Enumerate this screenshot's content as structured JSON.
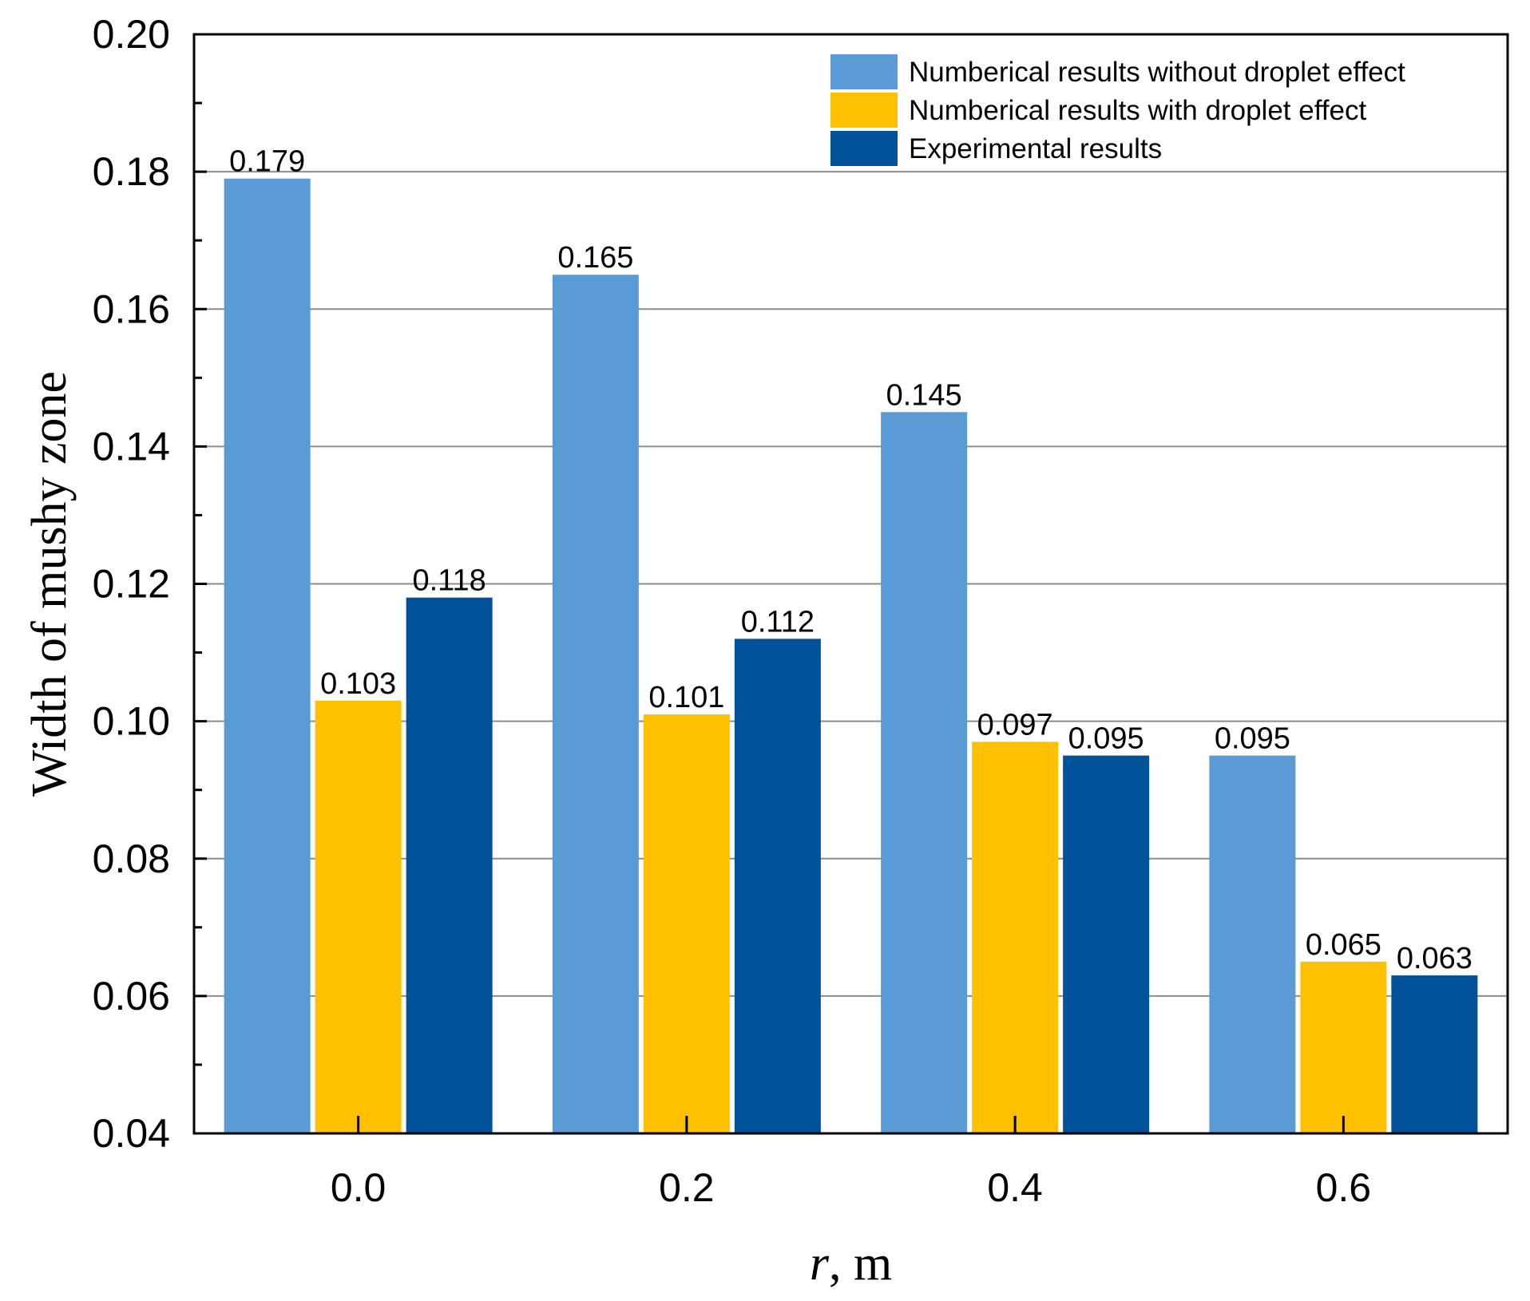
{
  "chart_data": {
    "type": "bar",
    "title": "",
    "xlabel": "r, m",
    "xlabel_var": "r",
    "xlabel_unit": ", m",
    "ylabel": "Width of mushy zone",
    "categories": [
      "0.0",
      "0.2",
      "0.4",
      "0.6"
    ],
    "ylim": [
      0.04,
      0.2
    ],
    "yticks": [
      "0.04",
      "0.06",
      "0.08",
      "0.10",
      "0.12",
      "0.14",
      "0.16",
      "0.18",
      "0.20"
    ],
    "grid": "horizontal",
    "legend_position": "top-right",
    "series": [
      {
        "name": "Numberical results without droplet effect",
        "color": "#5b9bd5",
        "values": [
          0.179,
          0.165,
          0.145,
          0.095
        ],
        "labels": [
          "0.179",
          "0.165",
          "0.145",
          "0.095"
        ]
      },
      {
        "name": "Numberical results with droplet effect",
        "color": "#ffc000",
        "values": [
          0.103,
          0.101,
          0.097,
          0.065
        ],
        "labels": [
          "0.103",
          "0.101",
          "0.097",
          "0.065"
        ]
      },
      {
        "name": "Experimental results",
        "color": "#00529b",
        "values": [
          0.118,
          0.112,
          0.095,
          0.063
        ],
        "labels": [
          "0.118",
          "0.112",
          "0.095",
          "0.063"
        ]
      }
    ]
  }
}
